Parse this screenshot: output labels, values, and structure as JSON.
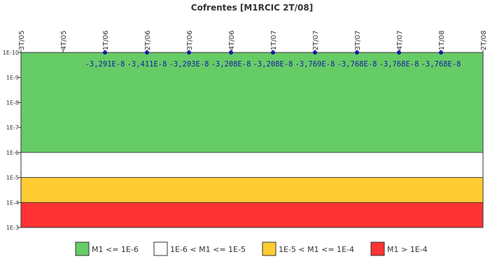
{
  "chart_data": {
    "type": "line",
    "title": "Cofrentes [M1RCIC 2T/08]",
    "x_categories": [
      "3T/05",
      "4T/05",
      "1T/06",
      "2T/06",
      "3T/06",
      "4T/06",
      "1T/07",
      "2T/07",
      "3T/07",
      "4T/07",
      "1T/08",
      "2T/08"
    ],
    "y_scale": "log",
    "y_ticks": [
      "1E-10",
      "1E-9",
      "1E-8",
      "1E-7",
      "1E-6",
      "1E-5",
      "1E-4",
      "1E-3"
    ],
    "y_exponent_range": [
      -10,
      -3
    ],
    "bands": [
      {
        "label": "M1 <= 1E-6",
        "from_exp": -10,
        "to_exp": -6,
        "color": "#66cc66"
      },
      {
        "label": "1E-6 < M1 <= 1E-5",
        "from_exp": -6,
        "to_exp": -5,
        "color": "#ffffff"
      },
      {
        "label": "1E-5 < M1 <= 1E-4",
        "from_exp": -5,
        "to_exp": -4,
        "color": "#ffcc33"
      },
      {
        "label": "M1 > 1E-4",
        "from_exp": -4,
        "to_exp": -3,
        "color": "#ff3333"
      }
    ],
    "series": [
      {
        "points": [
          {
            "x": "1T/06",
            "label": "-3,291E-8"
          },
          {
            "x": "2T/06",
            "label": "-3,411E-8"
          },
          {
            "x": "3T/06",
            "label": "-3,203E-8"
          },
          {
            "x": "4T/06",
            "label": "-3,208E-8"
          },
          {
            "x": "1T/07",
            "label": "-3,208E-8"
          },
          {
            "x": "2T/07",
            "label": "-3,769E-8"
          },
          {
            "x": "3T/07",
            "label": "-3,768E-8"
          },
          {
            "x": "4T/07",
            "label": "-3,768E-8"
          },
          {
            "x": "1T/08",
            "label": "-3,768E-8"
          }
        ],
        "marker_color": "#1a1aa6"
      }
    ],
    "legend_position": "bottom",
    "grid": false
  }
}
